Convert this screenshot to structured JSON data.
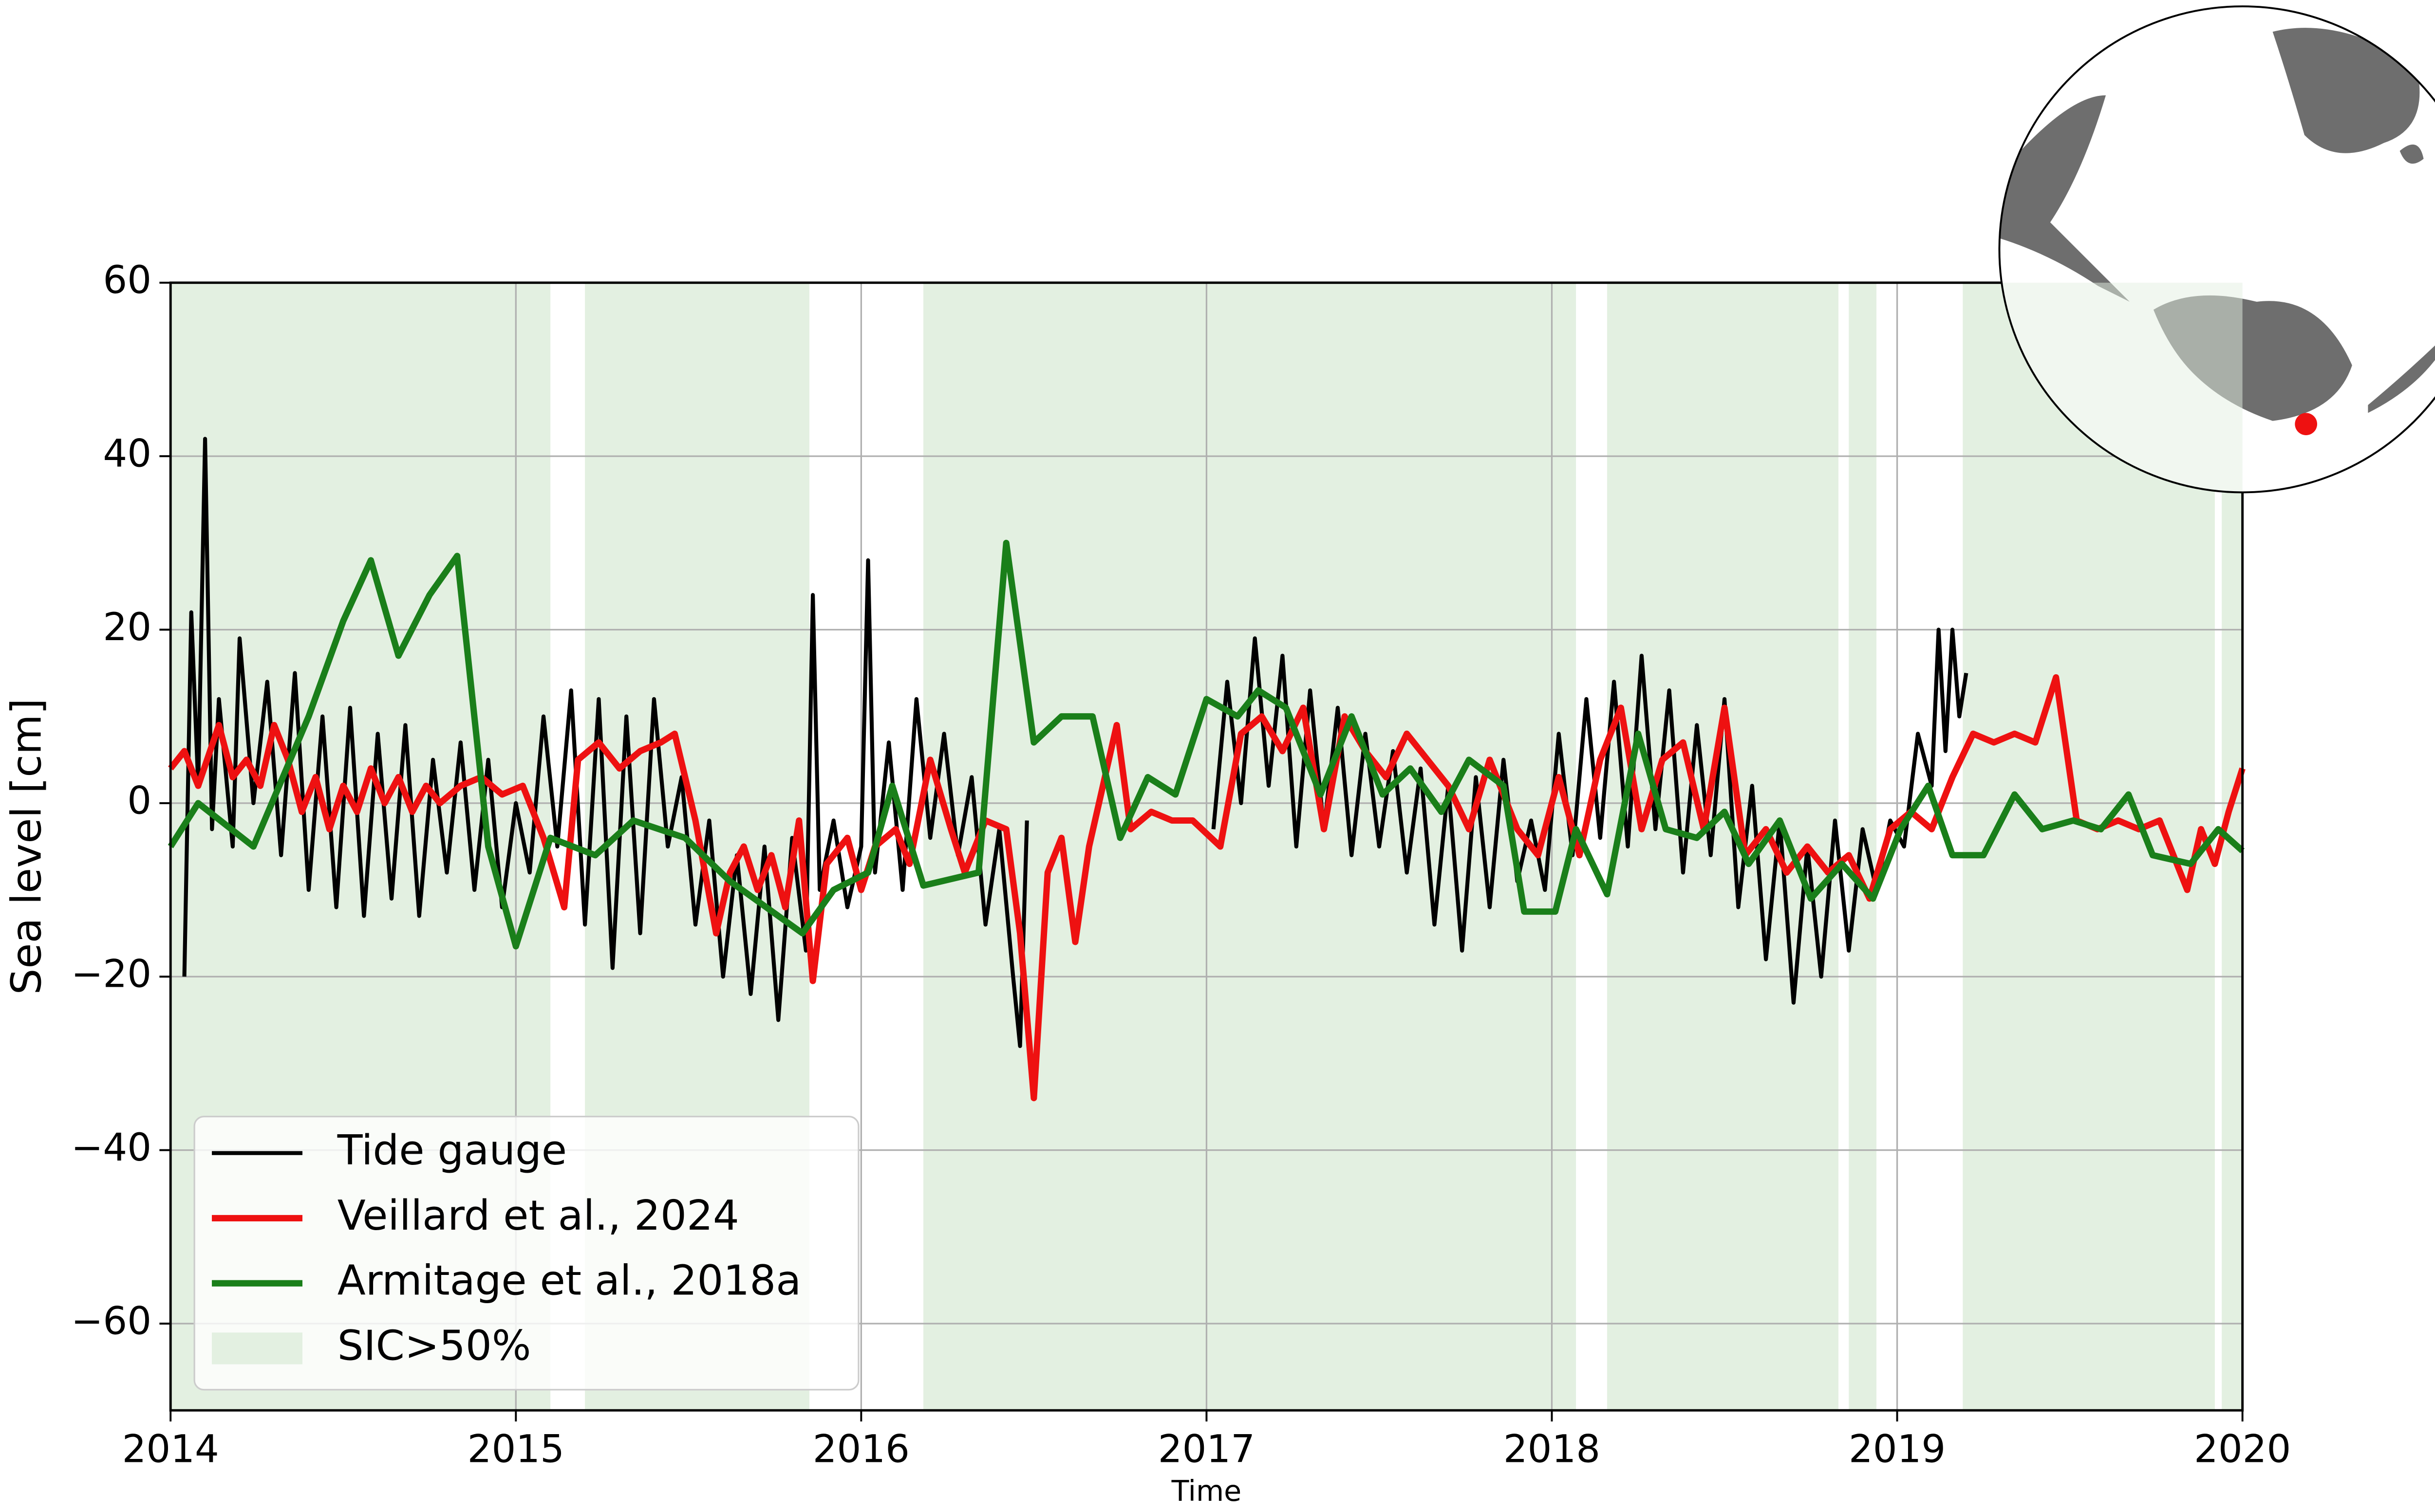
{
  "chart_data": {
    "type": "line",
    "xlabel": "Time",
    "ylabel": "Sea level [cm]",
    "xlim": [
      2014,
      2020
    ],
    "xticks": [
      2014,
      2015,
      2016,
      2017,
      2018,
      2019,
      2020
    ],
    "ylim": [
      -70,
      60
    ],
    "yticks": [
      {
        "value": -60,
        "label": "−60"
      },
      {
        "value": -40,
        "label": "−40"
      },
      {
        "value": -20,
        "label": "−20"
      },
      0,
      20,
      40,
      60
    ],
    "grid": true,
    "legend": "lower left",
    "shaded": {
      "name": "SIC>50%",
      "color": "#e3f0e1",
      "intervals": [
        [
          2014.0,
          2015.1
        ],
        [
          2015.2,
          2015.85
        ],
        [
          2016.18,
          2018.07
        ],
        [
          2018.16,
          2018.83
        ],
        [
          2018.86,
          2018.94
        ],
        [
          2019.19,
          2019.92
        ],
        [
          2019.94,
          2020.0
        ]
      ]
    },
    "series": [
      {
        "name": "Tide gauge",
        "color": "#000000",
        "x": [
          2014.04,
          2014.06,
          2014.08,
          2014.1,
          2014.12,
          2014.14,
          2014.18,
          2014.2,
          2014.24,
          2014.28,
          2014.32,
          2014.36,
          2014.4,
          2014.44,
          2014.48,
          2014.52,
          2014.56,
          2014.6,
          2014.64,
          2014.68,
          2014.72,
          2014.76,
          2014.8,
          2014.84,
          2014.88,
          2014.92,
          2014.96,
          2015.0,
          2015.04,
          2015.08,
          2015.12,
          2015.16,
          2015.2,
          2015.24,
          2015.28,
          2015.32,
          2015.36,
          2015.4,
          2015.44,
          2015.48,
          2015.52,
          2015.56,
          2015.6,
          2015.64,
          2015.68,
          2015.72,
          2015.76,
          2015.8,
          2015.84,
          2015.86,
          2015.88,
          2015.92,
          2015.96,
          2016.0,
          2016.02,
          2016.04,
          2016.08,
          2016.12,
          2016.16,
          2016.2,
          2016.24,
          2016.28,
          2016.32,
          2016.36,
          2016.4,
          2016.44,
          2016.46,
          2016.48,
          2016.7,
          2017.02,
          2017.06,
          2017.1,
          2017.14,
          2017.18,
          2017.22,
          2017.26,
          2017.3,
          2017.34,
          2017.38,
          2017.42,
          2017.46,
          2017.5,
          2017.54,
          2017.58,
          2017.62,
          2017.66,
          2017.7,
          2017.74,
          2017.78,
          2017.82,
          2017.86,
          2017.9,
          2017.94,
          2017.98,
          2018.02,
          2018.06,
          2018.1,
          2018.14,
          2018.18,
          2018.22,
          2018.26,
          2018.3,
          2018.34,
          2018.38,
          2018.42,
          2018.46,
          2018.5,
          2018.54,
          2018.58,
          2018.62,
          2018.66,
          2018.7,
          2018.74,
          2018.78,
          2018.82,
          2018.86,
          2018.9,
          2018.94,
          2018.98,
          2019.02,
          2019.06,
          2019.1,
          2019.12,
          2019.14,
          2019.16,
          2019.18,
          2019.2
        ],
        "values": [
          -20,
          22,
          2,
          42,
          -3,
          12,
          -5,
          19,
          0,
          14,
          -6,
          15,
          -10,
          10,
          -12,
          11,
          -13,
          8,
          -11,
          9,
          -13,
          5,
          -8,
          7,
          -10,
          5,
          -12,
          0,
          -8,
          10,
          -5,
          13,
          -14,
          12,
          -19,
          10,
          -15,
          12,
          -5,
          3,
          -14,
          -2,
          -20,
          -6,
          -22,
          -5,
          -25,
          -4,
          -17,
          24,
          -10,
          -2,
          -12,
          -5,
          28,
          -8,
          7,
          -10,
          12,
          -4,
          8,
          -6,
          3,
          -14,
          -3,
          -20,
          -28,
          -2,
          null,
          -3,
          14,
          0,
          19,
          2,
          17,
          -5,
          13,
          -3,
          11,
          -6,
          8,
          -5,
          6,
          -8,
          4,
          -14,
          2,
          -17,
          3,
          -12,
          5,
          -9,
          -2,
          -10,
          8,
          -6,
          12,
          -4,
          14,
          -5,
          17,
          -3,
          13,
          -8,
          9,
          -6,
          12,
          -12,
          2,
          -18,
          -2,
          -23,
          -5,
          -20,
          -2,
          -17,
          -3,
          -10,
          -2,
          -5,
          8,
          2,
          20,
          6,
          20,
          10,
          15
        ]
      },
      {
        "name": "Veillard et al., 2024",
        "color": "#ee1111",
        "x": [
          2014.0,
          2014.04,
          2014.08,
          2014.14,
          2014.18,
          2014.22,
          2014.26,
          2014.3,
          2014.34,
          2014.38,
          2014.42,
          2014.46,
          2014.5,
          2014.54,
          2014.58,
          2014.62,
          2014.66,
          2014.7,
          2014.74,
          2014.78,
          2014.84,
          2014.9,
          2014.96,
          2015.02,
          2015.08,
          2015.14,
          2015.18,
          2015.24,
          2015.3,
          2015.36,
          2015.42,
          2015.46,
          2015.52,
          2015.58,
          2015.62,
          2015.66,
          2015.7,
          2015.74,
          2015.78,
          2015.82,
          2015.86,
          2015.9,
          2015.96,
          2016.0,
          2016.04,
          2016.1,
          2016.14,
          2016.2,
          2016.26,
          2016.3,
          2016.36,
          2016.42,
          2016.46,
          2016.5,
          2016.54,
          2016.58,
          2016.62,
          2016.66,
          2016.7,
          2016.74,
          2016.78,
          2016.84,
          2016.9,
          2016.96,
          2017.04,
          2017.1,
          2017.16,
          2017.22,
          2017.28,
          2017.34,
          2017.4,
          2017.46,
          2017.52,
          2017.58,
          2017.64,
          2017.7,
          2017.76,
          2017.82,
          2017.9,
          2017.96,
          2018.02,
          2018.08,
          2018.14,
          2018.2,
          2018.26,
          2018.32,
          2018.38,
          2018.44,
          2018.5,
          2018.56,
          2018.62,
          2018.68,
          2018.74,
          2018.8,
          2018.86,
          2018.92,
          2018.98,
          2019.04,
          2019.1,
          2019.16,
          2019.22,
          2019.28,
          2019.34,
          2019.4,
          2019.46,
          2019.52,
          2019.58,
          2019.64,
          2019.7,
          2019.76,
          2019.8,
          2019.84,
          2019.88,
          2019.92,
          2019.96,
          2020.0
        ],
        "values": [
          4,
          6,
          2,
          9,
          3,
          5,
          2,
          9,
          5,
          -1,
          3,
          -3,
          2,
          -1,
          4,
          0,
          3,
          -1,
          2,
          0,
          2,
          3,
          1,
          2,
          -4,
          -12,
          5,
          7,
          4,
          6,
          7,
          8,
          -2,
          -15,
          -8,
          -5,
          -10,
          -6,
          -12,
          -2,
          -20.5,
          -7,
          -4,
          -10,
          -5,
          -3,
          -7,
          5,
          -3,
          -8,
          -2,
          -3,
          -15,
          -34,
          -8,
          -4,
          -16,
          -5,
          2,
          9,
          -3,
          -1,
          -2,
          -2,
          -5,
          8,
          10,
          6,
          11,
          -3,
          10,
          6,
          3,
          8,
          5,
          2,
          -3,
          5,
          -3,
          -6,
          3,
          -6,
          5,
          11,
          -3,
          5,
          7,
          -3,
          11,
          -6,
          -3,
          -8,
          -5,
          -8,
          -6,
          -11,
          -3,
          -1,
          -3,
          3,
          8,
          7,
          8,
          7,
          14.5,
          -2,
          -3,
          -2,
          -3,
          -2,
          -6,
          -10,
          -3,
          -7,
          -1,
          4
        ]
      },
      {
        "name": "Armitage et al., 2018a",
        "color": "#1a7f1a",
        "x": [
          2014.0,
          2014.08,
          2014.24,
          2014.4,
          2014.5,
          2014.58,
          2014.66,
          2014.75,
          2014.83,
          2014.92,
          2015.0,
          2015.1,
          2015.23,
          2015.34,
          2015.49,
          2015.62,
          2015.83,
          2015.92,
          2016.02,
          2016.09,
          2016.18,
          2016.34,
          2016.42,
          2016.5,
          2016.58,
          2016.67,
          2016.75,
          2016.83,
          2016.91,
          2017.0,
          2017.09,
          2017.15,
          2017.23,
          2017.33,
          2017.42,
          2017.51,
          2017.59,
          2017.68,
          2017.76,
          2017.86,
          2017.92,
          2018.01,
          2018.07,
          2018.16,
          2018.25,
          2018.33,
          2018.42,
          2018.5,
          2018.57,
          2018.66,
          2018.75,
          2018.84,
          2018.93,
          2019.01,
          2019.09,
          2019.16,
          2019.25,
          2019.34,
          2019.42,
          2019.51,
          2019.59,
          2019.67,
          2019.74,
          2019.85,
          2019.93,
          2020.0
        ],
        "values": [
          -5,
          0,
          -5,
          10,
          21,
          28,
          17,
          24,
          28.5,
          -5,
          -16.5,
          -4,
          -6,
          -2,
          -4,
          -9,
          -15,
          -10,
          -8,
          2,
          -9.5,
          -8,
          30,
          7,
          10,
          10,
          -4,
          3,
          1,
          12,
          10,
          13,
          11,
          1,
          10,
          1,
          4,
          -1,
          5,
          2,
          -12.5,
          -12.5,
          -3,
          -10.5,
          8,
          -3,
          -4,
          -1,
          -7,
          -2,
          -11,
          -7,
          -11,
          -3,
          2,
          -6,
          -6,
          1,
          -3,
          -2,
          -3,
          1,
          -6,
          -7,
          -3,
          -5.5
        ]
      }
    ]
  }
}
